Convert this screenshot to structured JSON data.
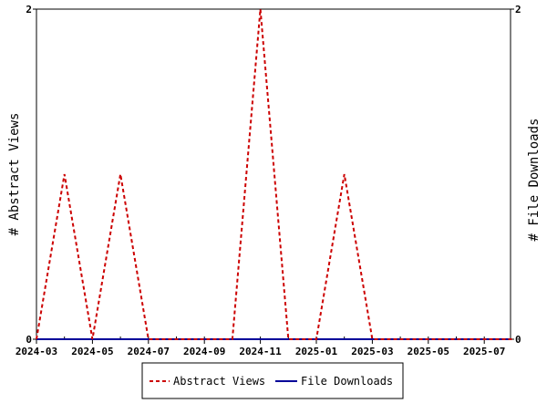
{
  "chart_data": {
    "type": "line",
    "title": "",
    "xlabel": "",
    "ylabel_left": "# Abstract Views",
    "ylabel_right": "# File Downloads",
    "x_ticks": [
      "2024-03",
      "2024-05",
      "2024-07",
      "2024-09",
      "2024-11",
      "2025-01",
      "2025-03",
      "2025-05",
      "2025-07"
    ],
    "x_months": [
      "2024-03",
      "2024-04",
      "2024-05",
      "2024-06",
      "2024-07",
      "2024-08",
      "2024-09",
      "2024-10",
      "2024-11",
      "2024-12",
      "2025-01",
      "2025-02",
      "2025-03",
      "2025-04",
      "2025-05",
      "2025-06",
      "2025-07",
      "2025-08"
    ],
    "ylim_left": [
      0,
      2
    ],
    "ylim_right": [
      0,
      2
    ],
    "y_ticks_left": [
      "0",
      "2"
    ],
    "y_ticks_right": [
      "0",
      "2"
    ],
    "series": [
      {
        "name": "Abstract Views",
        "axis": "left",
        "color": "#cc0000",
        "dash": "dashed",
        "values": [
          0,
          1,
          0,
          1,
          0,
          0,
          0,
          0,
          2,
          0,
          0,
          1,
          0,
          0,
          0,
          0,
          0,
          0
        ]
      },
      {
        "name": "File Downloads",
        "axis": "right",
        "color": "#000099",
        "dash": "solid",
        "values": [
          0,
          0,
          0,
          0,
          0,
          0,
          0,
          0,
          0,
          0,
          0,
          0,
          0,
          0,
          0,
          0,
          0,
          0
        ]
      }
    ],
    "grid": false,
    "legend_position": "bottom"
  }
}
